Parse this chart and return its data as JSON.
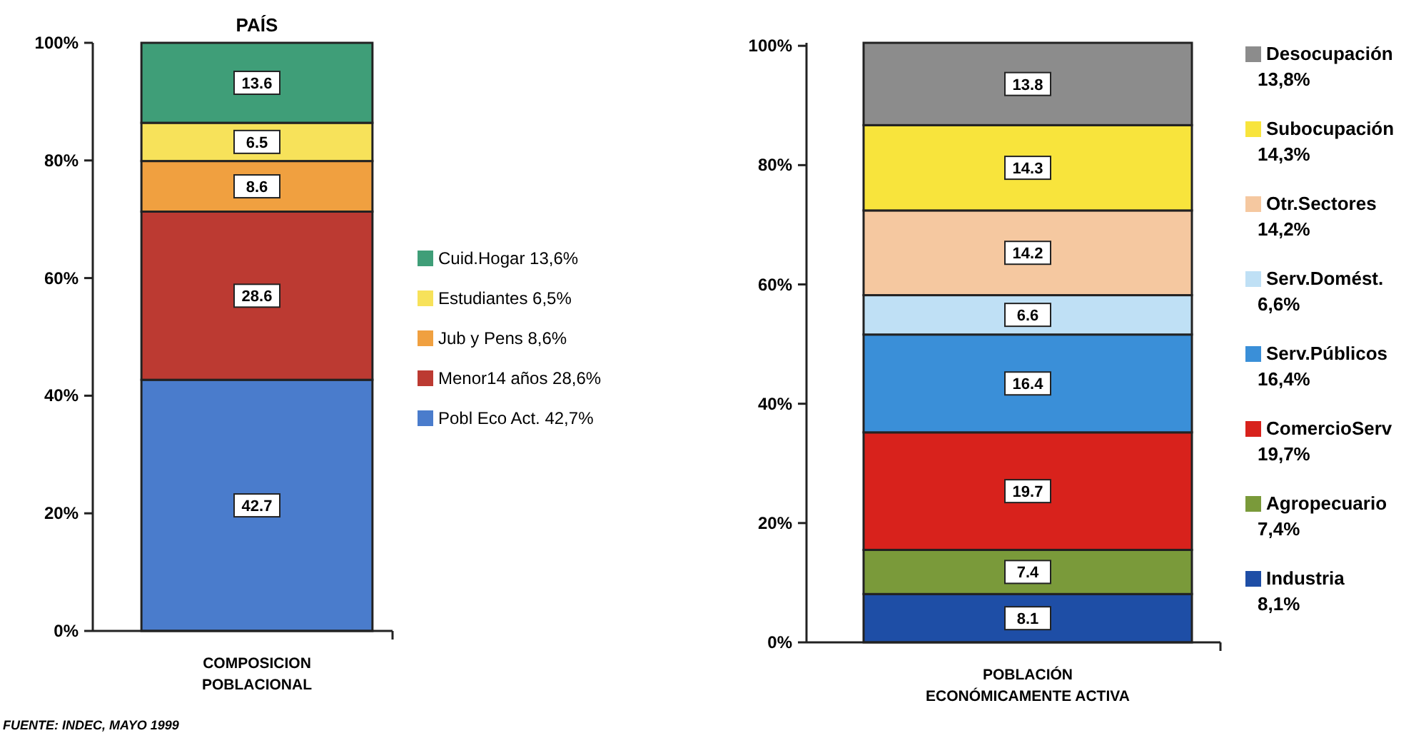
{
  "chart_data": [
    {
      "type": "bar",
      "title": "PAÍS",
      "stacked": true,
      "categories": [
        "COMPOSICION POBLACIONAL"
      ],
      "data_labels": true,
      "legend": "right",
      "grid": false,
      "ylim": [
        0,
        100
      ],
      "yticks": [
        {
          "value": 0,
          "label": "0%"
        },
        {
          "value": 20,
          "label": "20%"
        },
        {
          "value": 40,
          "label": "40%"
        },
        {
          "value": 60,
          "label": "60%"
        },
        {
          "value": 80,
          "label": "80%"
        },
        {
          "value": 100,
          "label": "100%"
        }
      ],
      "annotations": [
        "FUENTE: INDEC, MAYO 1999"
      ],
      "series": [
        {
          "name": "Pobl Eco Act. 42,7%",
          "color": "#4a7ccc",
          "values": [
            42.7
          ]
        },
        {
          "name": "Menor14 años 28,6%",
          "color": "#bc3a32",
          "values": [
            28.6
          ]
        },
        {
          "name": "Jub y Pens 8,6%",
          "color": "#f0a040",
          "values": [
            8.6
          ]
        },
        {
          "name": "Estudiantes 6,5%",
          "color": "#f7e25a",
          "values": [
            6.5
          ]
        },
        {
          "name": "Cuid.Hogar 13,6%",
          "color": "#3f9e78",
          "values": [
            13.6
          ]
        }
      ]
    },
    {
      "type": "bar",
      "stacked": true,
      "categories": [
        "POBLACIÓN ECONÓMICAMENTE ACTIVA"
      ],
      "data_labels": true,
      "legend": "right",
      "grid": false,
      "ylim": [
        0,
        100.5
      ],
      "yticks": [
        {
          "value": 0,
          "label": "0%"
        },
        {
          "value": 20,
          "label": "20%"
        },
        {
          "value": 40,
          "label": "40%"
        },
        {
          "value": 60,
          "label": "60%"
        },
        {
          "value": 80,
          "label": "80%"
        },
        {
          "value": 100,
          "label": "100%"
        }
      ],
      "series": [
        {
          "name": "Industria 8,1%",
          "color": "#1e4ea6",
          "values": [
            8.1
          ]
        },
        {
          "name": "Agropecuario 7,4%",
          "color": "#7a9a3a",
          "values": [
            7.4
          ]
        },
        {
          "name": "ComercioServ 19,7%",
          "color": "#d8221c",
          "values": [
            19.7
          ]
        },
        {
          "name": "Serv.Públicos 16,4%",
          "color": "#3a8fd8",
          "values": [
            16.4
          ]
        },
        {
          "name": "Serv.Domést. 6,6%",
          "color": "#bfe0f5",
          "values": [
            6.6
          ]
        },
        {
          "name": "Otr.Sectores 14,2%",
          "color": "#f5c8a0",
          "values": [
            14.2
          ]
        },
        {
          "name": "Subocupación 14,3%",
          "color": "#f8e43c",
          "values": [
            14.3
          ]
        },
        {
          "name": "Desocupación 13,8%",
          "color": "#8c8c8c",
          "values": [
            13.8
          ]
        }
      ]
    }
  ]
}
